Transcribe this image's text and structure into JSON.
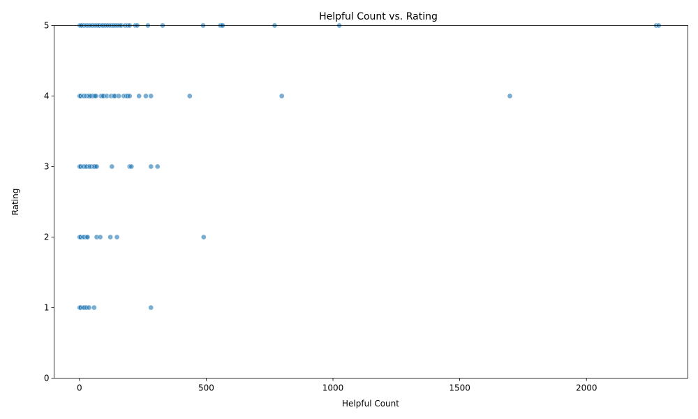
{
  "chart_data": {
    "type": "scatter",
    "title": "Helpful Count vs. Rating",
    "xlabel": "Helpful Count",
    "ylabel": "Rating",
    "xlim": [
      -100,
      2400
    ],
    "ylim": [
      0,
      5
    ],
    "xticks": [
      0,
      500,
      1000,
      1500,
      2000
    ],
    "yticks": [
      0,
      1,
      2,
      3,
      4,
      5
    ],
    "grid": false,
    "legend": "none",
    "point_color": "#1f77b4",
    "point_alpha": 0.6,
    "points": [
      [
        0,
        5
      ],
      [
        2,
        5
      ],
      [
        5,
        5
      ],
      [
        10,
        5
      ],
      [
        18,
        5
      ],
      [
        25,
        5
      ],
      [
        30,
        5
      ],
      [
        35,
        5
      ],
      [
        40,
        5
      ],
      [
        45,
        5
      ],
      [
        50,
        5
      ],
      [
        55,
        5
      ],
      [
        60,
        5
      ],
      [
        65,
        5
      ],
      [
        70,
        5
      ],
      [
        75,
        5
      ],
      [
        80,
        5
      ],
      [
        88,
        5
      ],
      [
        92,
        5
      ],
      [
        98,
        5
      ],
      [
        105,
        5
      ],
      [
        112,
        5
      ],
      [
        120,
        5
      ],
      [
        128,
        5
      ],
      [
        135,
        5
      ],
      [
        142,
        5
      ],
      [
        150,
        5
      ],
      [
        158,
        5
      ],
      [
        165,
        5
      ],
      [
        180,
        5
      ],
      [
        190,
        5
      ],
      [
        198,
        5
      ],
      [
        220,
        5
      ],
      [
        228,
        5
      ],
      [
        270,
        5
      ],
      [
        328,
        5
      ],
      [
        488,
        5
      ],
      [
        555,
        5
      ],
      [
        560,
        5
      ],
      [
        565,
        5
      ],
      [
        770,
        5
      ],
      [
        1025,
        5
      ],
      [
        2275,
        5
      ],
      [
        2285,
        5
      ],
      [
        0,
        4
      ],
      [
        2,
        4
      ],
      [
        5,
        4
      ],
      [
        15,
        4
      ],
      [
        20,
        4
      ],
      [
        25,
        4
      ],
      [
        30,
        4
      ],
      [
        35,
        4
      ],
      [
        38,
        4
      ],
      [
        42,
        4
      ],
      [
        48,
        4
      ],
      [
        55,
        4
      ],
      [
        60,
        4
      ],
      [
        65,
        4
      ],
      [
        85,
        4
      ],
      [
        90,
        4
      ],
      [
        95,
        4
      ],
      [
        108,
        4
      ],
      [
        125,
        4
      ],
      [
        135,
        4
      ],
      [
        140,
        4
      ],
      [
        155,
        4
      ],
      [
        175,
        4
      ],
      [
        185,
        4
      ],
      [
        190,
        4
      ],
      [
        198,
        4
      ],
      [
        235,
        4
      ],
      [
        262,
        4
      ],
      [
        282,
        4
      ],
      [
        435,
        4
      ],
      [
        798,
        4
      ],
      [
        1698,
        4
      ],
      [
        0,
        3
      ],
      [
        2,
        3
      ],
      [
        5,
        3
      ],
      [
        15,
        3
      ],
      [
        20,
        3
      ],
      [
        25,
        3
      ],
      [
        30,
        3
      ],
      [
        38,
        3
      ],
      [
        42,
        3
      ],
      [
        48,
        3
      ],
      [
        55,
        3
      ],
      [
        58,
        3
      ],
      [
        62,
        3
      ],
      [
        68,
        3
      ],
      [
        128,
        3
      ],
      [
        198,
        3
      ],
      [
        205,
        3
      ],
      [
        282,
        3
      ],
      [
        308,
        3
      ],
      [
        0,
        2
      ],
      [
        2,
        2
      ],
      [
        5,
        2
      ],
      [
        15,
        2
      ],
      [
        20,
        2
      ],
      [
        28,
        2
      ],
      [
        32,
        2
      ],
      [
        68,
        2
      ],
      [
        82,
        2
      ],
      [
        122,
        2
      ],
      [
        148,
        2
      ],
      [
        490,
        2
      ],
      [
        0,
        1
      ],
      [
        2,
        1
      ],
      [
        5,
        1
      ],
      [
        15,
        1
      ],
      [
        20,
        1
      ],
      [
        28,
        1
      ],
      [
        38,
        1
      ],
      [
        58,
        1
      ],
      [
        282,
        1
      ]
    ]
  }
}
